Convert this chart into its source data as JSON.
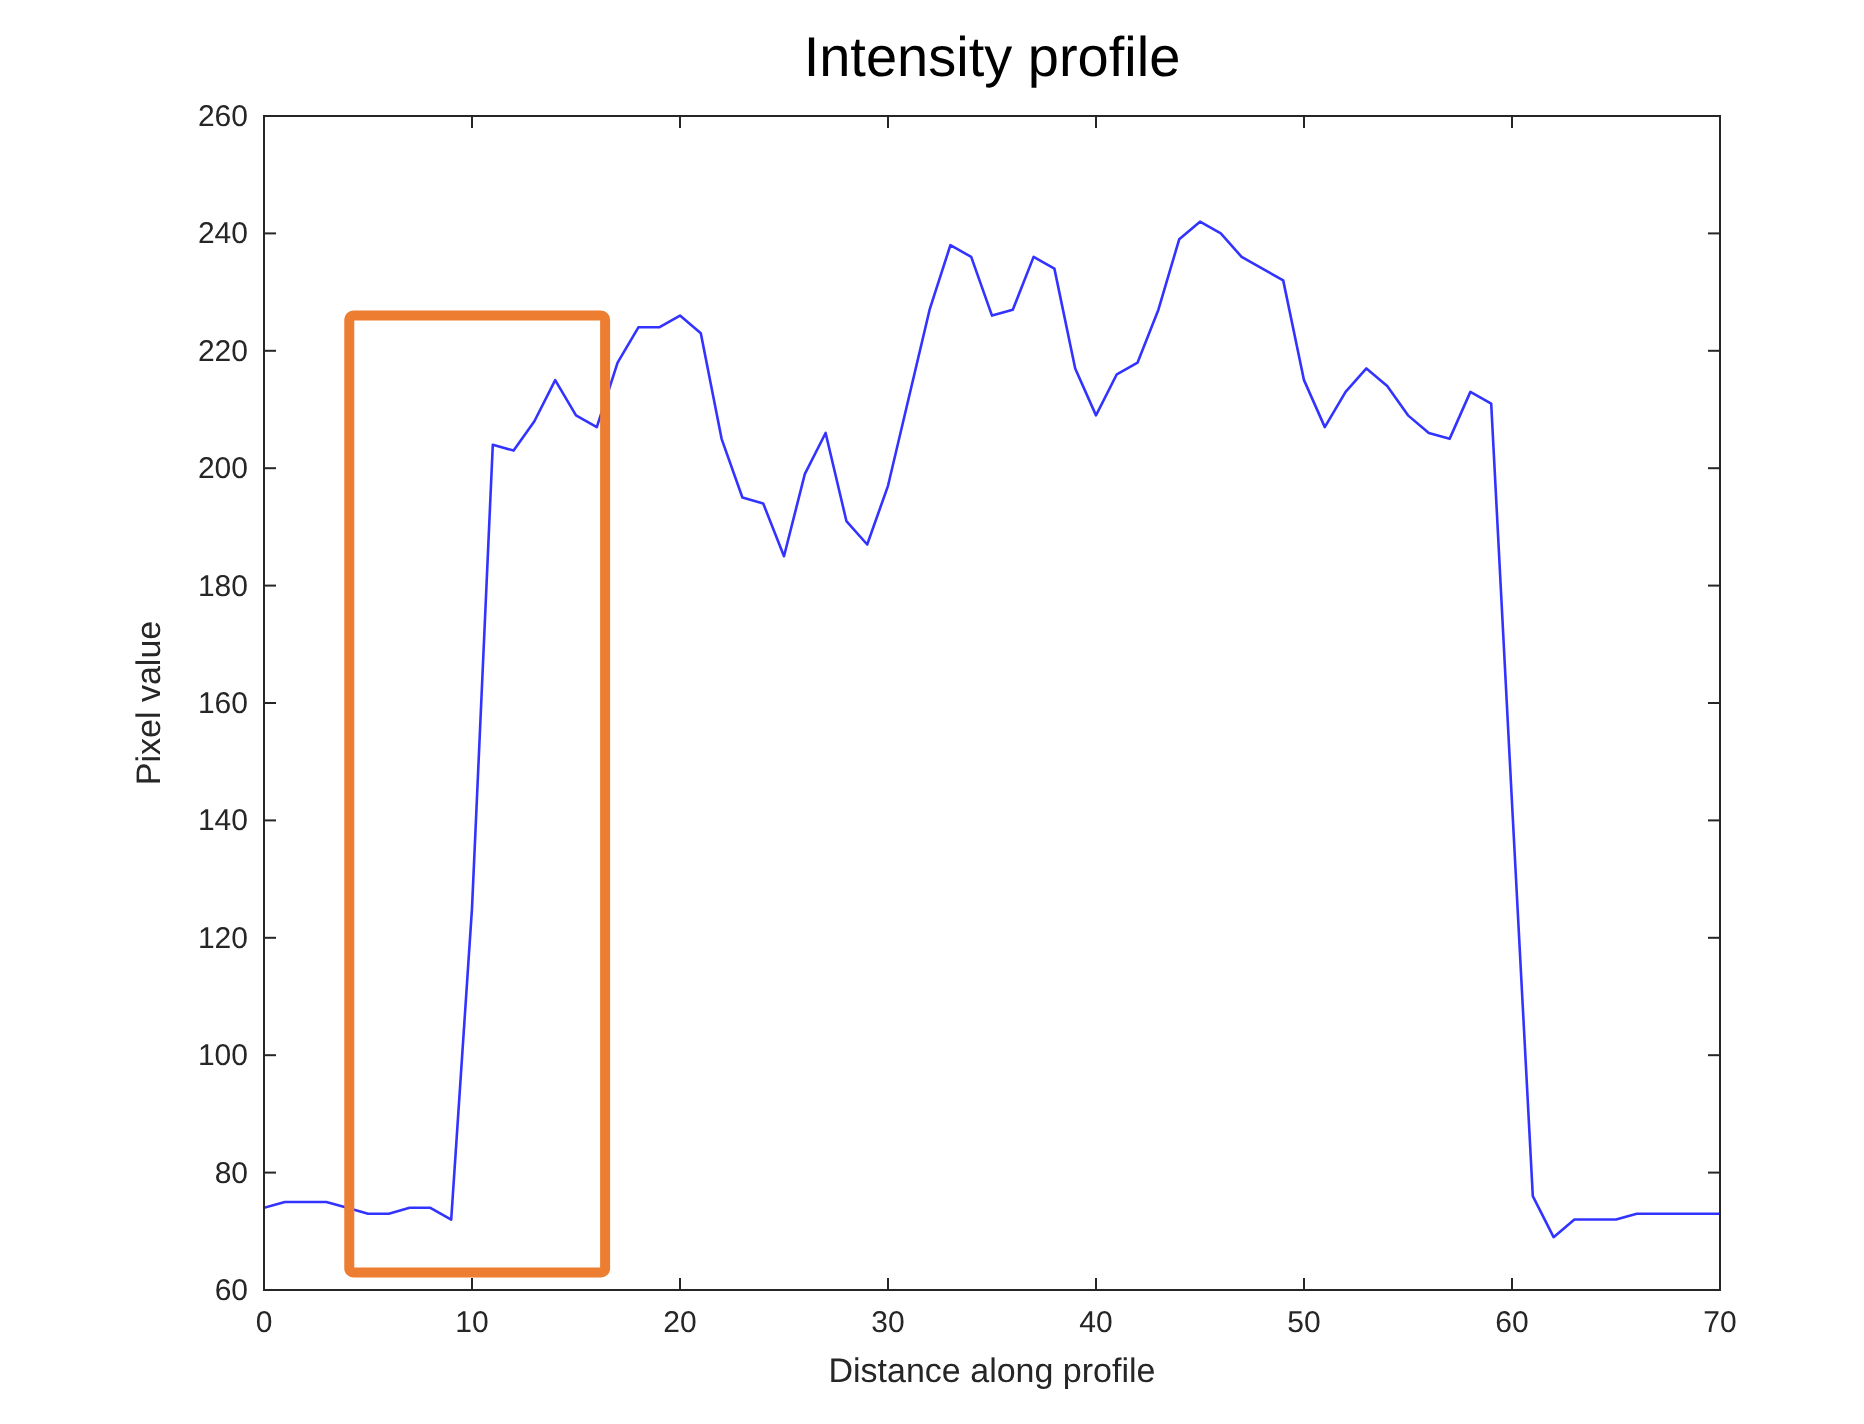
{
  "chart_data": {
    "type": "line",
    "title": "Intensity profile",
    "xlabel": "Distance along profile",
    "ylabel": "Pixel value",
    "x": [
      0,
      1,
      2,
      3,
      4,
      5,
      6,
      7,
      8,
      9,
      10,
      11,
      12,
      13,
      14,
      15,
      16,
      17,
      18,
      19,
      20,
      21,
      22,
      23,
      24,
      25,
      26,
      27,
      28,
      29,
      30,
      31,
      32,
      33,
      34,
      35,
      36,
      37,
      38,
      39,
      40,
      41,
      42,
      43,
      44,
      45,
      46,
      47,
      48,
      49,
      50,
      51,
      52,
      53,
      54,
      55,
      56,
      57,
      58,
      59,
      60,
      61,
      62,
      63,
      64,
      65,
      66,
      67,
      68,
      69,
      70
    ],
    "series": [
      {
        "color": "#3333ff",
        "values": [
          74,
          75,
          75,
          75,
          74,
          73,
          73,
          74,
          74,
          72,
          125,
          204,
          203,
          208,
          215,
          209,
          207,
          218,
          224,
          224,
          226,
          223,
          205,
          195,
          194,
          185,
          199,
          206,
          191,
          187,
          197,
          212,
          227,
          238,
          236,
          226,
          227,
          236,
          234,
          217,
          209,
          216,
          218,
          227,
          239,
          242,
          240,
          236,
          234,
          232,
          215,
          207,
          213,
          217,
          214,
          209,
          206,
          205,
          213,
          211,
          143,
          76,
          69,
          72,
          72,
          72,
          73,
          73,
          73,
          73,
          73
        ]
      }
    ],
    "xlim": [
      0,
      70
    ],
    "ylim": [
      60,
      260
    ],
    "xticks": [
      0,
      10,
      20,
      30,
      40,
      50,
      60,
      70
    ],
    "yticks": [
      60,
      80,
      100,
      120,
      140,
      160,
      180,
      200,
      220,
      240,
      260
    ],
    "grid": false,
    "marker": "none",
    "line_style": "solid"
  }
}
